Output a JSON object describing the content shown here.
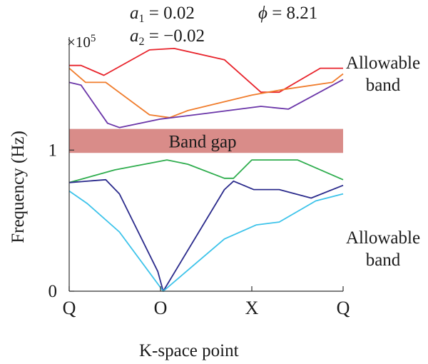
{
  "params": {
    "a1": {
      "symbol": "a",
      "sub": "1",
      "value": "= 0.02"
    },
    "a2": {
      "symbol": "a",
      "sub": "2",
      "value": "= −0.02"
    },
    "phi": {
      "symbol": "ϕ",
      "value": "= 8.21"
    }
  },
  "y_multiplier": {
    "base": "×10",
    "exp": "5"
  },
  "annotations": {
    "band_gap": "Band gap",
    "upper_band": [
      "Allowable",
      "band"
    ],
    "lower_band": [
      "Allowable",
      "band"
    ]
  },
  "chart_data": {
    "type": "line",
    "xlabel": "K-space point",
    "ylabel": "Frequency (Hz)",
    "xlim": [
      0,
      3
    ],
    "ylim": [
      0,
      1.75
    ],
    "x_ticks": [
      {
        "value": 0,
        "label": "Q"
      },
      {
        "value": 1,
        "label": "O"
      },
      {
        "value": 2,
        "label": "X"
      },
      {
        "value": 3,
        "label": "Q"
      }
    ],
    "y_ticks": [
      {
        "value": 0,
        "label": "0"
      },
      {
        "value": 1,
        "label": "1"
      }
    ],
    "band_gap": {
      "y0": 0.98,
      "y1": 1.15,
      "color": "#d98c89"
    },
    "series": [
      {
        "color": "#e8232b",
        "points": [
          [
            0,
            1.6
          ],
          [
            0.13,
            1.6
          ],
          [
            0.38,
            1.53
          ],
          [
            0.88,
            1.71
          ],
          [
            1.15,
            1.72
          ],
          [
            1.7,
            1.64
          ],
          [
            2.1,
            1.41
          ],
          [
            2.3,
            1.41
          ],
          [
            2.75,
            1.58
          ],
          [
            3,
            1.58
          ]
        ]
      },
      {
        "color": "#f07c2c",
        "points": [
          [
            0,
            1.58
          ],
          [
            0.18,
            1.48
          ],
          [
            0.4,
            1.48
          ],
          [
            0.88,
            1.25
          ],
          [
            1.1,
            1.23
          ],
          [
            1.3,
            1.28
          ],
          [
            2.0,
            1.39
          ],
          [
            2.35,
            1.43
          ],
          [
            2.88,
            1.48
          ],
          [
            3,
            1.54
          ]
        ]
      },
      {
        "color": "#6a35a8",
        "points": [
          [
            0,
            1.48
          ],
          [
            0.13,
            1.46
          ],
          [
            0.42,
            1.19
          ],
          [
            0.55,
            1.16
          ],
          [
            1.0,
            1.22
          ],
          [
            1.5,
            1.26
          ],
          [
            2.1,
            1.31
          ],
          [
            2.4,
            1.29
          ],
          [
            3,
            1.5
          ]
        ]
      },
      {
        "color": "#2fad4e",
        "points": [
          [
            0,
            0.77
          ],
          [
            0.5,
            0.86
          ],
          [
            1.07,
            0.93
          ],
          [
            1.3,
            0.9
          ],
          [
            1.7,
            0.8
          ],
          [
            1.8,
            0.8
          ],
          [
            2.0,
            0.93
          ],
          [
            2.5,
            0.93
          ],
          [
            3,
            0.79
          ]
        ]
      },
      {
        "color": "#2b2b8c",
        "points": [
          [
            0,
            0.77
          ],
          [
            0.4,
            0.79
          ],
          [
            0.55,
            0.69
          ],
          [
            0.97,
            0.14
          ],
          [
            1.03,
            0.0
          ],
          [
            1.7,
            0.72
          ],
          [
            1.8,
            0.78
          ],
          [
            2.02,
            0.72
          ],
          [
            2.3,
            0.72
          ],
          [
            2.65,
            0.66
          ],
          [
            3,
            0.75
          ]
        ]
      },
      {
        "color": "#3cc3ea",
        "points": [
          [
            0,
            0.71
          ],
          [
            0.2,
            0.62
          ],
          [
            0.55,
            0.42
          ],
          [
            1.03,
            0.0
          ],
          [
            1.7,
            0.37
          ],
          [
            2.05,
            0.47
          ],
          [
            2.3,
            0.49
          ],
          [
            2.7,
            0.64
          ],
          [
            3,
            0.69
          ]
        ]
      }
    ]
  }
}
